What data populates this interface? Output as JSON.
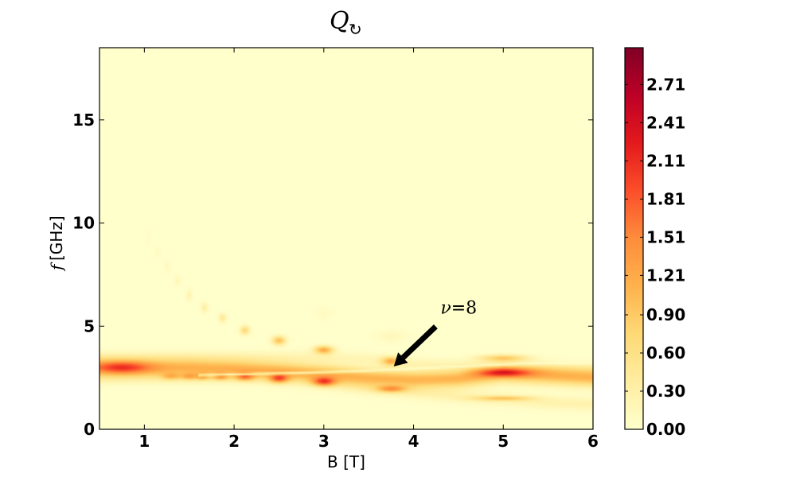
{
  "chart_data": {
    "type": "heatmap",
    "title": "Q",
    "title_symbol": "↻",
    "xlabel": "B [T]",
    "ylabel": "[GHz]",
    "ylabel_symbol": "f",
    "xlim": [
      0.5,
      6
    ],
    "ylim": [
      0,
      18.5
    ],
    "x_ticks": [
      1,
      2,
      3,
      4,
      5,
      6
    ],
    "x_tick_labels": [
      "1",
      "2",
      "3",
      "4",
      "5",
      "6"
    ],
    "y_ticks": [
      0,
      5,
      10,
      15
    ],
    "y_tick_labels": [
      "0",
      "5",
      "10",
      "15"
    ],
    "colorbar": {
      "colormap": "YlOrRd",
      "range": [
        0,
        3.0
      ],
      "tick_values": [
        0.0,
        0.3,
        0.6,
        0.9,
        1.21,
        1.51,
        1.81,
        2.11,
        2.41,
        2.71
      ],
      "tick_labels": [
        "0.00",
        "0.30",
        "0.60",
        "0.90",
        "1.21",
        "1.51",
        "1.81",
        "2.11",
        "2.41",
        "2.71"
      ]
    },
    "features": [
      {
        "type": "band",
        "points": [
          [
            0.5,
            3.0
          ],
          [
            1.0,
            3.0
          ],
          [
            1.5,
            3.0
          ],
          [
            2.0,
            2.95
          ],
          [
            2.5,
            2.85
          ],
          [
            3.0,
            2.7
          ],
          [
            3.5,
            2.5
          ],
          [
            4.0,
            2.4
          ],
          [
            4.5,
            2.45
          ],
          [
            5.0,
            2.7
          ],
          [
            5.5,
            2.6
          ],
          [
            6.0,
            2.5
          ]
        ],
        "width": 0.6,
        "intensity": 1.1
      },
      {
        "type": "band",
        "points": [
          [
            0.5,
            2.5
          ],
          [
            1.5,
            2.55
          ],
          [
            2.0,
            2.55
          ],
          [
            2.5,
            2.5
          ],
          [
            3.0,
            2.3
          ],
          [
            3.5,
            2.0
          ],
          [
            4.0,
            1.8
          ],
          [
            4.5,
            1.6
          ],
          [
            5.0,
            1.45
          ],
          [
            5.5,
            1.3
          ],
          [
            6.0,
            1.2
          ]
        ],
        "width": 0.45,
        "intensity": 0.25
      },
      {
        "type": "band",
        "points": [
          [
            3.0,
            3.5
          ],
          [
            3.5,
            3.4
          ],
          [
            4.0,
            3.2
          ],
          [
            4.5,
            3.1
          ],
          [
            5.0,
            3.0
          ],
          [
            6.0,
            2.9
          ]
        ],
        "width": 0.4,
        "intensity": 0.2
      },
      {
        "type": "spot",
        "x": 0.75,
        "y": 3.0,
        "sx": 0.3,
        "sy": 0.3,
        "v": 1.0
      },
      {
        "type": "spot",
        "x": 1.3,
        "y": 2.55,
        "sx": 0.1,
        "sy": 0.15,
        "v": 0.6
      },
      {
        "type": "spot",
        "x": 1.5,
        "y": 2.55,
        "sx": 0.08,
        "sy": 0.15,
        "v": 0.7
      },
      {
        "type": "spot",
        "x": 1.65,
        "y": 2.55,
        "sx": 0.07,
        "sy": 0.15,
        "v": 0.8
      },
      {
        "type": "spot",
        "x": 1.85,
        "y": 2.55,
        "sx": 0.08,
        "sy": 0.15,
        "v": 0.9
      },
      {
        "type": "spot",
        "x": 2.12,
        "y": 2.55,
        "sx": 0.1,
        "sy": 0.18,
        "v": 1.1
      },
      {
        "type": "spot",
        "x": 2.5,
        "y": 2.45,
        "sx": 0.1,
        "sy": 0.2,
        "v": 1.3
      },
      {
        "type": "spot",
        "x": 3.0,
        "y": 2.3,
        "sx": 0.12,
        "sy": 0.2,
        "v": 1.4
      },
      {
        "type": "spot",
        "x": 3.75,
        "y": 1.95,
        "sx": 0.15,
        "sy": 0.15,
        "v": 1.0
      },
      {
        "type": "spot",
        "x": 5.0,
        "y": 1.5,
        "sx": 0.3,
        "sy": 0.1,
        "v": 0.8
      },
      {
        "type": "spot",
        "x": 5.0,
        "y": 2.75,
        "sx": 0.3,
        "sy": 0.2,
        "v": 1.2
      },
      {
        "type": "spot",
        "x": 5.0,
        "y": 3.45,
        "sx": 0.25,
        "sy": 0.15,
        "v": 0.9
      },
      {
        "type": "spot",
        "x": 3.0,
        "y": 3.85,
        "sx": 0.1,
        "sy": 0.18,
        "v": 1.2
      },
      {
        "type": "spot",
        "x": 3.75,
        "y": 3.3,
        "sx": 0.1,
        "sy": 0.2,
        "v": 1.0
      },
      {
        "type": "spot",
        "x": 2.5,
        "y": 4.3,
        "sx": 0.07,
        "sy": 0.2,
        "v": 1.0
      },
      {
        "type": "spot",
        "x": 2.12,
        "y": 4.8,
        "sx": 0.05,
        "sy": 0.2,
        "v": 0.7
      },
      {
        "type": "spot",
        "x": 1.87,
        "y": 5.4,
        "sx": 0.04,
        "sy": 0.2,
        "v": 0.45
      },
      {
        "type": "spot",
        "x": 1.67,
        "y": 5.9,
        "sx": 0.035,
        "sy": 0.22,
        "v": 0.35
      },
      {
        "type": "spot",
        "x": 1.5,
        "y": 6.5,
        "sx": 0.03,
        "sy": 0.25,
        "v": 0.25
      },
      {
        "type": "spot",
        "x": 1.37,
        "y": 7.2,
        "sx": 0.03,
        "sy": 0.25,
        "v": 0.18
      },
      {
        "type": "spot",
        "x": 1.25,
        "y": 7.9,
        "sx": 0.03,
        "sy": 0.25,
        "v": 0.13
      },
      {
        "type": "spot",
        "x": 1.15,
        "y": 8.6,
        "sx": 0.03,
        "sy": 0.25,
        "v": 0.1
      },
      {
        "type": "spot",
        "x": 1.05,
        "y": 9.3,
        "sx": 0.03,
        "sy": 0.3,
        "v": 0.07
      },
      {
        "type": "spot",
        "x": 3.75,
        "y": 4.5,
        "sx": 0.15,
        "sy": 0.25,
        "v": 0.15
      },
      {
        "type": "spot",
        "x": 3.0,
        "y": 5.6,
        "sx": 0.08,
        "sy": 0.25,
        "v": 0.1
      },
      {
        "type": "gap",
        "points": [
          [
            1.6,
            2.62
          ],
          [
            2.2,
            2.68
          ],
          [
            2.8,
            2.74
          ],
          [
            3.4,
            2.82
          ],
          [
            4.0,
            2.94
          ],
          [
            4.6,
            3.06
          ],
          [
            5.2,
            3.18
          ],
          [
            6.0,
            3.22
          ]
        ],
        "width": 0.08
      }
    ],
    "annotation": {
      "text_var": "ν",
      "text_eq": "=",
      "text_val": "8",
      "text_xy": [
        4.3,
        5.6
      ],
      "target_xy": [
        3.78,
        3.05
      ]
    }
  }
}
